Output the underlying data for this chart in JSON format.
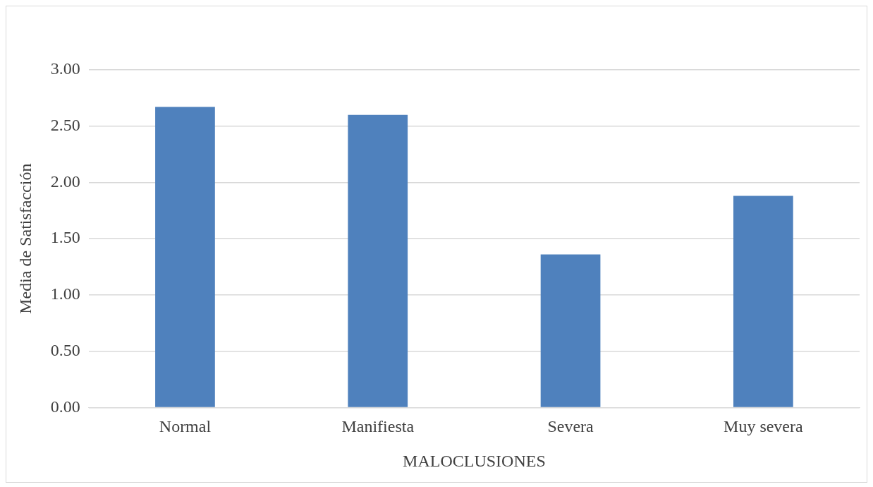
{
  "chart_data": {
    "type": "bar",
    "xlabel": "MALOCLUSIONES",
    "ylabel": "Media de Satisfacción",
    "categories": [
      "Normal",
      "Manifiesta",
      "Severa",
      "Muy severa"
    ],
    "values": [
      2.67,
      2.6,
      1.36,
      1.88
    ],
    "color": "#4f81bd",
    "ylim": [
      0,
      3
    ],
    "yticks": [
      {
        "value": 0,
        "label": "0.00"
      },
      {
        "value": 0.5,
        "label": "0.50"
      },
      {
        "value": 1,
        "label": "1.00"
      },
      {
        "value": 1.5,
        "label": "1.50"
      },
      {
        "value": 2,
        "label": "2.00"
      },
      {
        "value": 2.5,
        "label": "2.50"
      },
      {
        "value": 3,
        "label": "3.00"
      }
    ],
    "grid": "y"
  }
}
